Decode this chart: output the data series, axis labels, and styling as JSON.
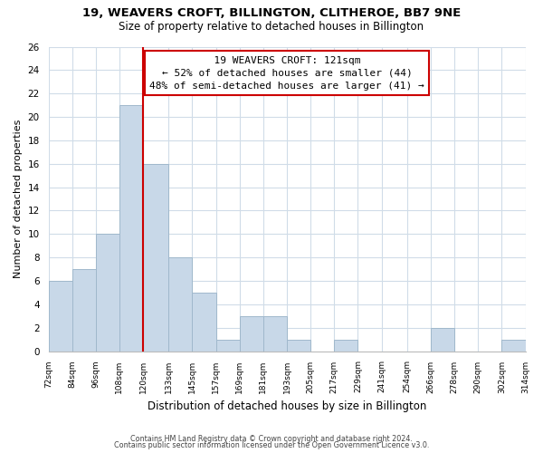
{
  "title1": "19, WEAVERS CROFT, BILLINGTON, CLITHEROE, BB7 9NE",
  "title2": "Size of property relative to detached houses in Billington",
  "xlabel": "Distribution of detached houses by size in Billington",
  "ylabel": "Number of detached properties",
  "bins_left": [
    72,
    84,
    96,
    108,
    120,
    133,
    145,
    157,
    169,
    181,
    193,
    205,
    217,
    229,
    241,
    254,
    266,
    278,
    290,
    302
  ],
  "bin_labels": [
    "72sqm",
    "84sqm",
    "96sqm",
    "108sqm",
    "120sqm",
    "133sqm",
    "145sqm",
    "157sqm",
    "169sqm",
    "181sqm",
    "193sqm",
    "205sqm",
    "217sqm",
    "229sqm",
    "241sqm",
    "254sqm",
    "266sqm",
    "278sqm",
    "290sqm",
    "302sqm",
    "314sqm"
  ],
  "counts": [
    6,
    7,
    10,
    21,
    16,
    8,
    5,
    1,
    3,
    3,
    1,
    0,
    1,
    0,
    0,
    0,
    2,
    0,
    0,
    1
  ],
  "bar_color": "#c8d8e8",
  "bar_edge_color": "#a0b8cc",
  "property_line_x": 120,
  "property_line_color": "#cc0000",
  "annotation_line1": "19 WEAVERS CROFT: 121sqm",
  "annotation_line2": "← 52% of detached houses are smaller (44)",
  "annotation_line3": "48% of semi-detached houses are larger (41) →",
  "annotation_box_color": "#ffffff",
  "annotation_box_edge": "#cc0000",
  "ylim": [
    0,
    26
  ],
  "yticks": [
    0,
    2,
    4,
    6,
    8,
    10,
    12,
    14,
    16,
    18,
    20,
    22,
    24,
    26
  ],
  "footnote1": "Contains HM Land Registry data © Crown copyright and database right 2024.",
  "footnote2": "Contains public sector information licensed under the Open Government Licence v3.0.",
  "bg_color": "#ffffff",
  "grid_color": "#d0dce8"
}
